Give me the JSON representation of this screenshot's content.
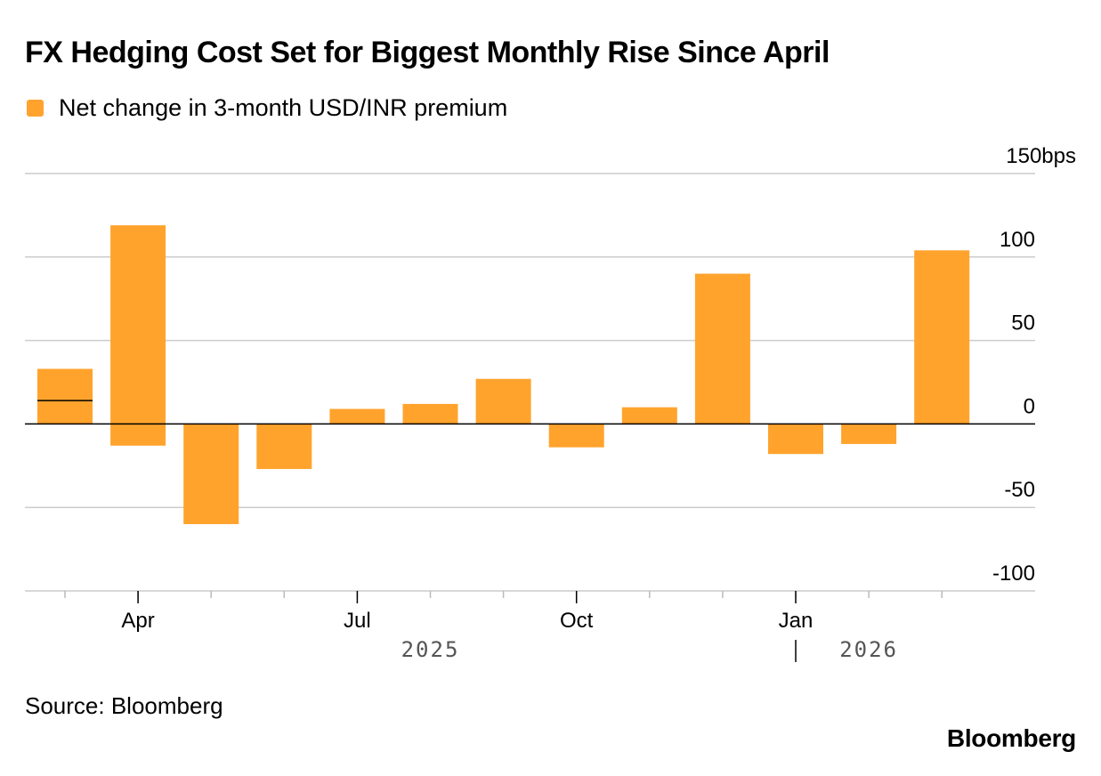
{
  "title": "FX Hedging Cost Set for Biggest Monthly Rise Since April",
  "legend": {
    "label": "Net change in 3-month USD/INR premium",
    "color": "#ffa32d"
  },
  "source": "Source: Bloomberg",
  "brand": "Bloomberg",
  "chart_data": {
    "type": "bar",
    "categories": [
      "Mar 2025",
      "Apr 2025",
      "May 2025",
      "Jun 2025",
      "Jul 2025",
      "Aug 2025",
      "Sep 2025",
      "Oct 2025",
      "Nov 2025",
      "Dec 2025",
      "Jan 2026",
      "Feb 2026",
      "Mar 2026"
    ],
    "series": [
      {
        "name": "Net change in 3-month USD/INR premium",
        "bars": [
          {
            "low": 0,
            "high": 33,
            "marker": 14
          },
          {
            "low": -13,
            "high": 119
          },
          {
            "low": -60,
            "high": 0
          },
          {
            "low": -27,
            "high": 0
          },
          {
            "low": 0,
            "high": 9
          },
          {
            "low": 0,
            "high": 12
          },
          {
            "low": 0,
            "high": 27
          },
          {
            "low": -14,
            "high": 0
          },
          {
            "low": 0,
            "high": 10
          },
          {
            "low": 0,
            "high": 90
          },
          {
            "low": -18,
            "high": 0
          },
          {
            "low": -12,
            "high": 0
          },
          {
            "low": 0,
            "high": 104
          }
        ]
      }
    ],
    "ylim": [
      -100,
      150
    ],
    "y_ticks": [
      150,
      100,
      50,
      0,
      -50,
      -100
    ],
    "y_tick_labels": [
      "150bps",
      "100",
      "50",
      "0",
      "-50",
      "-100"
    ],
    "x_tick_labels": [
      {
        "label": "Apr",
        "category": 1
      },
      {
        "label": "Jul",
        "category": 4
      },
      {
        "label": "Oct",
        "category": 7
      },
      {
        "label": "Jan",
        "category": 10
      }
    ],
    "year_labels": [
      {
        "label": "2025",
        "category": 5
      },
      {
        "label": "2026",
        "category": 11
      }
    ],
    "color": "#ffa32d",
    "grid": true,
    "legend_position": "top-left"
  }
}
